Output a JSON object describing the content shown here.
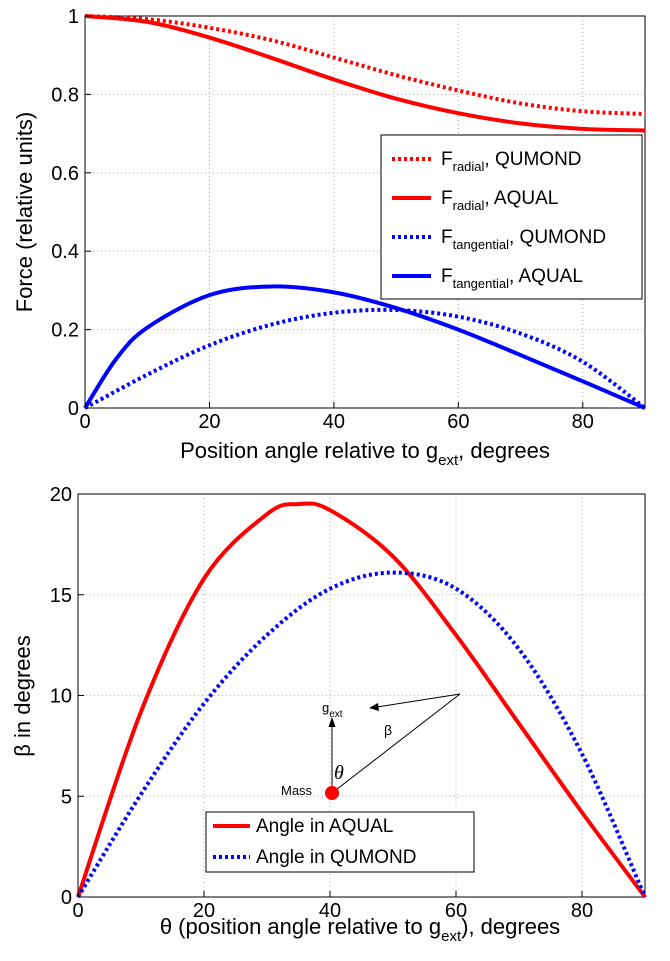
{
  "chart_data": [
    {
      "type": "line",
      "xlabel": "Position angle relative to g",
      "xlabel_sub": "ext",
      "xlabel_tail": ", degrees",
      "ylabel": "Force (relative units)",
      "xlim": [
        0,
        90
      ],
      "ylim": [
        0,
        1
      ],
      "x_ticks": [
        0,
        20,
        40,
        60,
        80
      ],
      "y_ticks": [
        0,
        0.2,
        0.4,
        0.6,
        0.8,
        1
      ],
      "x_tick_labels": [
        "0",
        "20",
        "40",
        "60",
        "80"
      ],
      "y_tick_labels": [
        "0",
        "0.2",
        "0.4",
        "0.6",
        "0.8",
        "1"
      ],
      "grid": true,
      "legend_position": "right",
      "series": [
        {
          "name": "F radial, QUMOND",
          "label_main": "F",
          "label_sub": "radial",
          "label_tail": ", QUMOND",
          "color": "#ff0000",
          "dash": "dotted",
          "x": [
            0,
            10,
            20,
            30,
            40,
            50,
            60,
            70,
            80,
            90
          ],
          "y": [
            1.0,
            0.992,
            0.97,
            0.938,
            0.894,
            0.849,
            0.81,
            0.777,
            0.757,
            0.75
          ]
        },
        {
          "name": "F radial, AQUAL",
          "label_main": "F",
          "label_sub": "radial",
          "label_tail": ", AQUAL",
          "color": "#ff0000",
          "dash": "solid",
          "x": [
            0,
            10,
            20,
            30,
            40,
            50,
            60,
            70,
            80,
            90
          ],
          "y": [
            1.0,
            0.985,
            0.945,
            0.893,
            0.838,
            0.789,
            0.752,
            0.726,
            0.712,
            0.708
          ]
        },
        {
          "name": "F tangential, QUMOND",
          "label_main": "F",
          "label_sub": "tangential",
          "label_tail": ", QUMOND",
          "color": "#0000ff",
          "dash": "dotted",
          "x": [
            0,
            10,
            20,
            30,
            40,
            50,
            60,
            70,
            80,
            90
          ],
          "y": [
            0,
            0.085,
            0.16,
            0.213,
            0.243,
            0.25,
            0.233,
            0.19,
            0.118,
            0
          ]
        },
        {
          "name": "F tangential, AQUAL",
          "label_main": "F",
          "label_sub": "tangential",
          "label_tail": ", AQUAL",
          "color": "#0000ff",
          "dash": "solid",
          "x": [
            0,
            5,
            10,
            20,
            30,
            40,
            50,
            60,
            70,
            80,
            90
          ],
          "y": [
            0,
            0.125,
            0.205,
            0.288,
            0.31,
            0.295,
            0.255,
            0.2,
            0.135,
            0.068,
            0
          ]
        }
      ]
    },
    {
      "type": "line",
      "xlabel": "θ (position angle relative to g",
      "xlabel_sub": "ext",
      "xlabel_tail": "), degrees",
      "ylabel": "β in degrees",
      "xlim": [
        0,
        90
      ],
      "ylim": [
        0,
        20
      ],
      "x_ticks": [
        0,
        20,
        40,
        60,
        80
      ],
      "y_ticks": [
        0,
        5,
        10,
        15,
        20
      ],
      "x_tick_labels": [
        "0",
        "20",
        "40",
        "60",
        "80"
      ],
      "y_tick_labels": [
        "0",
        "5",
        "10",
        "15",
        "20"
      ],
      "grid": true,
      "legend_position": "bottom-center",
      "series": [
        {
          "name": "Angle in AQUAL",
          "color": "#ff0000",
          "dash": "solid",
          "x": [
            0,
            10,
            20,
            30,
            35,
            40,
            50,
            60,
            70,
            80,
            90
          ],
          "y": [
            0,
            9.2,
            15.8,
            19.0,
            19.5,
            19.2,
            16.9,
            13.0,
            8.6,
            4.2,
            0
          ]
        },
        {
          "name": "Angle in QUMOND",
          "color": "#0000ff",
          "dash": "dotted",
          "x": [
            0,
            10,
            20,
            30,
            40,
            50,
            60,
            70,
            80,
            90
          ],
          "y": [
            0,
            5.1,
            9.6,
            13.0,
            15.3,
            16.1,
            15.3,
            12.3,
            7.1,
            0
          ]
        }
      ],
      "inset": {
        "vector_label": "g",
        "vector_label_sub": "ext",
        "angle_label": "β",
        "theta_label": "θ",
        "mass_label": "Mass"
      }
    }
  ]
}
